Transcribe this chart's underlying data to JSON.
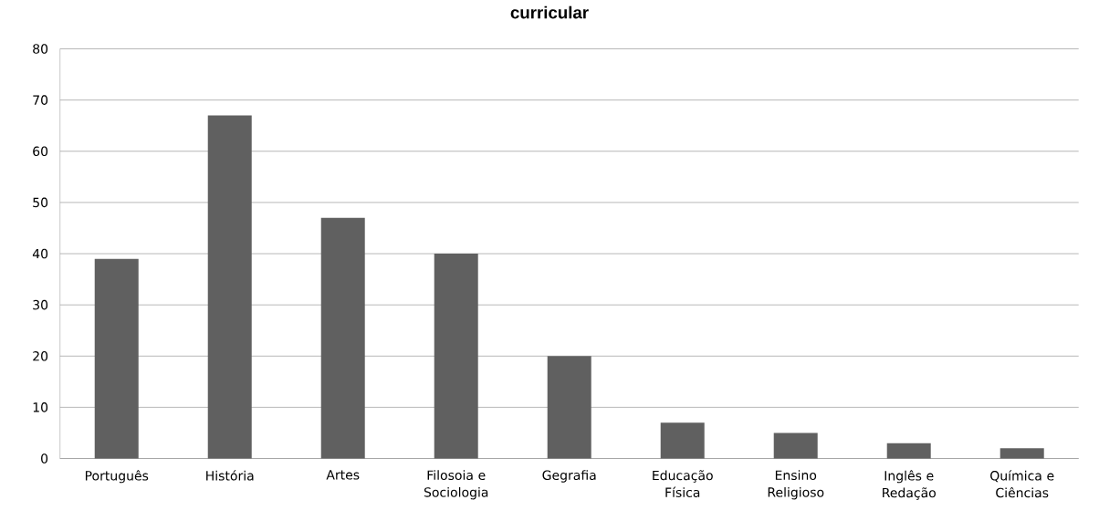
{
  "chart_data": {
    "type": "bar",
    "title": "curricular",
    "categories": [
      "Português",
      "História",
      "Artes",
      "Filosoia e Sociologia",
      "Gegrafia",
      "Educação Física",
      "Ensino Religioso",
      "Inglês e Redação",
      "Química e Ciências"
    ],
    "values": [
      39,
      67,
      47,
      40,
      20,
      7,
      5,
      3,
      2
    ],
    "color": "#606060",
    "ylim": [
      0,
      80
    ],
    "yticks": [
      0,
      10,
      20,
      30,
      40,
      50,
      60,
      70,
      80
    ],
    "grid": "y"
  }
}
